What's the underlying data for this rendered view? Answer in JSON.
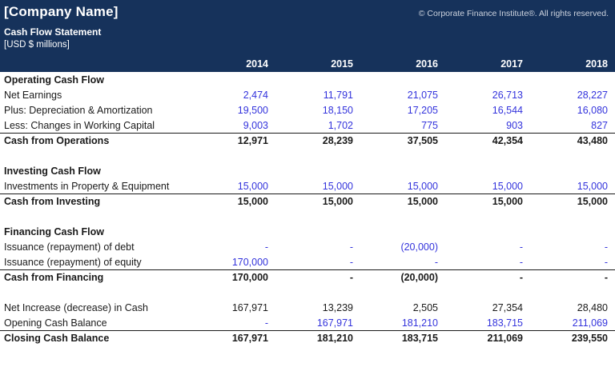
{
  "header": {
    "company_name": "[Company Name]",
    "copyright": "© Corporate Finance Institute®. All rights reserved.",
    "statement_title": "Cash Flow Statement",
    "units": "[USD $ millions]",
    "years": [
      "2014",
      "2015",
      "2016",
      "2017",
      "2018"
    ]
  },
  "colors": {
    "header_bg": "#16325B",
    "input_value_blue": "#3333DC",
    "text_dark": "#1A1A1A"
  },
  "table": {
    "rows": [
      {
        "type": "section",
        "label": "Operating Cash Flow"
      },
      {
        "type": "input",
        "label": "Net Earnings",
        "values": [
          "2,474",
          "11,791",
          "21,075",
          "26,713",
          "28,227"
        ]
      },
      {
        "type": "input",
        "label": "Plus: Depreciation & Amortization",
        "values": [
          "19,500",
          "18,150",
          "17,205",
          "16,544",
          "16,080"
        ]
      },
      {
        "type": "input",
        "label": "Less: Changes in Working Capital",
        "values": [
          "9,003",
          "1,702",
          "775",
          "903",
          "827"
        ]
      },
      {
        "type": "total",
        "label": "Cash from Operations",
        "values": [
          "12,971",
          "28,239",
          "37,505",
          "42,354",
          "43,480"
        ]
      },
      {
        "type": "section",
        "label": "Investing Cash Flow"
      },
      {
        "type": "input",
        "label": "Investments in Property & Equipment",
        "values": [
          "15,000",
          "15,000",
          "15,000",
          "15,000",
          "15,000"
        ]
      },
      {
        "type": "total",
        "label": "Cash from Investing",
        "values": [
          "15,000",
          "15,000",
          "15,000",
          "15,000",
          "15,000"
        ]
      },
      {
        "type": "section",
        "label": "Financing Cash Flow"
      },
      {
        "type": "input",
        "label": "Issuance (repayment) of debt",
        "values": [
          "-",
          "-",
          "(20,000)",
          "-",
          "-"
        ]
      },
      {
        "type": "input",
        "label": "Issuance (repayment) of equity",
        "values": [
          "170,000",
          "-",
          "-",
          "-",
          "-"
        ]
      },
      {
        "type": "total",
        "label": "Cash from Financing",
        "values": [
          "170,000",
          "-",
          "(20,000)",
          "-",
          "-"
        ]
      },
      {
        "type": "calc",
        "label": "Net Increase (decrease) in Cash",
        "values": [
          "167,971",
          "13,239",
          "2,505",
          "27,354",
          "28,480"
        ]
      },
      {
        "type": "input",
        "label": "Opening Cash Balance",
        "values": [
          "-",
          "167,971",
          "181,210",
          "183,715",
          "211,069"
        ]
      },
      {
        "type": "total",
        "label": "Closing Cash Balance",
        "values": [
          "167,971",
          "181,210",
          "183,715",
          "211,069",
          "239,550"
        ]
      }
    ]
  }
}
